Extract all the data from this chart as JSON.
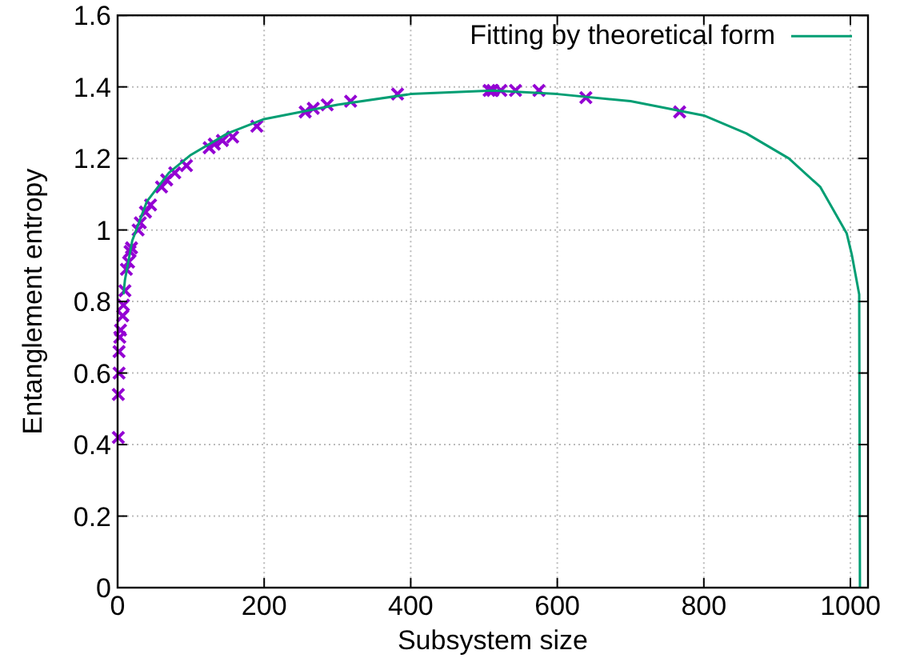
{
  "chart_data": {
    "type": "scatter",
    "xlabel": "Subsystem size",
    "ylabel": "Entanglement entropy",
    "xlim": [
      0,
      1024
    ],
    "xticks": [
      0,
      200,
      400,
      600,
      800,
      1000
    ],
    "ylim": [
      0,
      1.6
    ],
    "yticks": [
      0,
      0.2,
      0.4,
      0.6,
      0.8,
      1,
      1.2,
      1.4,
      1.6
    ],
    "grid": true,
    "legend": "top right",
    "series": [
      {
        "color": "#9400d3",
        "marker": "cross",
        "x": [
          1,
          1,
          2,
          2,
          3,
          4,
          7,
          8,
          10,
          12,
          15,
          17,
          19,
          28,
          31,
          38,
          45,
          60,
          67,
          78,
          94,
          125,
          132,
          143,
          157,
          190,
          256,
          267,
          286,
          318,
          382,
          507,
          512,
          523,
          543,
          575,
          639,
          767
        ],
        "values": [
          0.42,
          0.54,
          0.6,
          0.66,
          0.7,
          0.72,
          0.76,
          0.79,
          0.83,
          0.89,
          0.91,
          0.94,
          0.95,
          1.0,
          1.02,
          1.05,
          1.07,
          1.12,
          1.14,
          1.16,
          1.18,
          1.23,
          1.24,
          1.25,
          1.26,
          1.29,
          1.33,
          1.34,
          1.35,
          1.36,
          1.38,
          1.39,
          1.39,
          1.39,
          1.39,
          1.39,
          1.37,
          1.33
        ]
      },
      {
        "type": "line",
        "name": "Fitting by theoretical form",
        "color": "#009e73",
        "marker": "none",
        "line_style": "solid",
        "x": [
          8,
          10,
          20,
          40,
          70,
          100,
          150,
          200,
          300,
          400,
          512,
          600,
          700,
          800,
          858,
          916,
          959,
          995,
          1002,
          1012,
          1013
        ],
        "values": [
          0.82,
          0.86,
          0.97,
          1.08,
          1.16,
          1.21,
          1.27,
          1.31,
          1.35,
          1.38,
          1.39,
          1.38,
          1.36,
          1.32,
          1.27,
          1.2,
          1.12,
          0.99,
          0.93,
          0.82,
          0
        ]
      }
    ]
  }
}
